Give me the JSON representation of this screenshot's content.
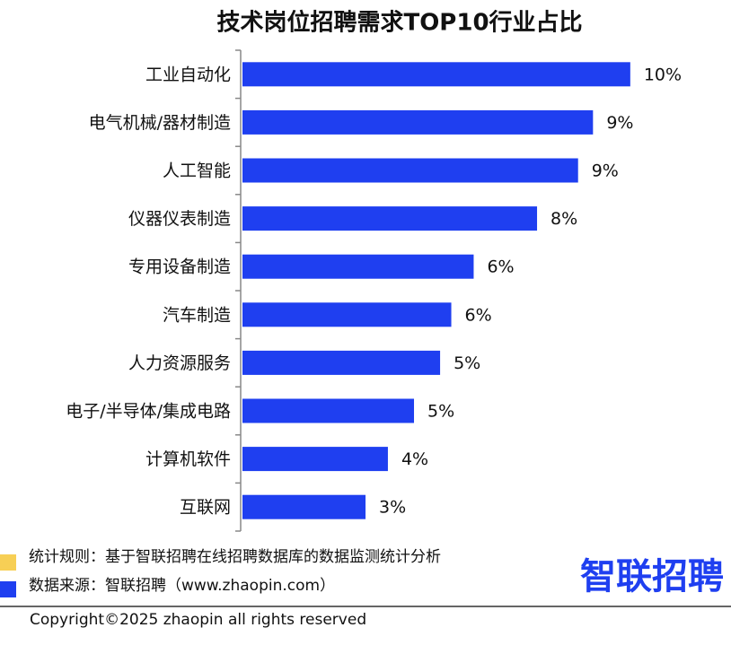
{
  "chart_data": {
    "type": "hbar",
    "title": "技术岗位招聘需求TOP10行业占比",
    "categories": [
      "工业自动化",
      "电气机械/器材制造",
      "人工智能",
      "仪器仪表制造",
      "专用设备制造",
      "汽车制造",
      "人力资源服务",
      "电子/半导体/集成电路",
      "计算机软件",
      "互联网"
    ],
    "values": [
      10.4,
      9.4,
      9.0,
      7.9,
      6.2,
      5.6,
      5.3,
      4.6,
      3.9,
      3.3
    ],
    "value_labels": [
      "10%",
      "9%",
      "9%",
      "8%",
      "6%",
      "6%",
      "5%",
      "5%",
      "4%",
      "3%"
    ],
    "color": "#1f3ff0",
    "xlim": [
      0,
      10.5
    ]
  },
  "footer": {
    "rule": "统计规则：基于智联招聘在线招聘数据库的数据监测统计分析",
    "source": "数据来源：智联招聘（www.zhaopin.com）",
    "logo": "智联招聘",
    "copyright": "Copyright©2025 zhaopin all rights reserved"
  }
}
